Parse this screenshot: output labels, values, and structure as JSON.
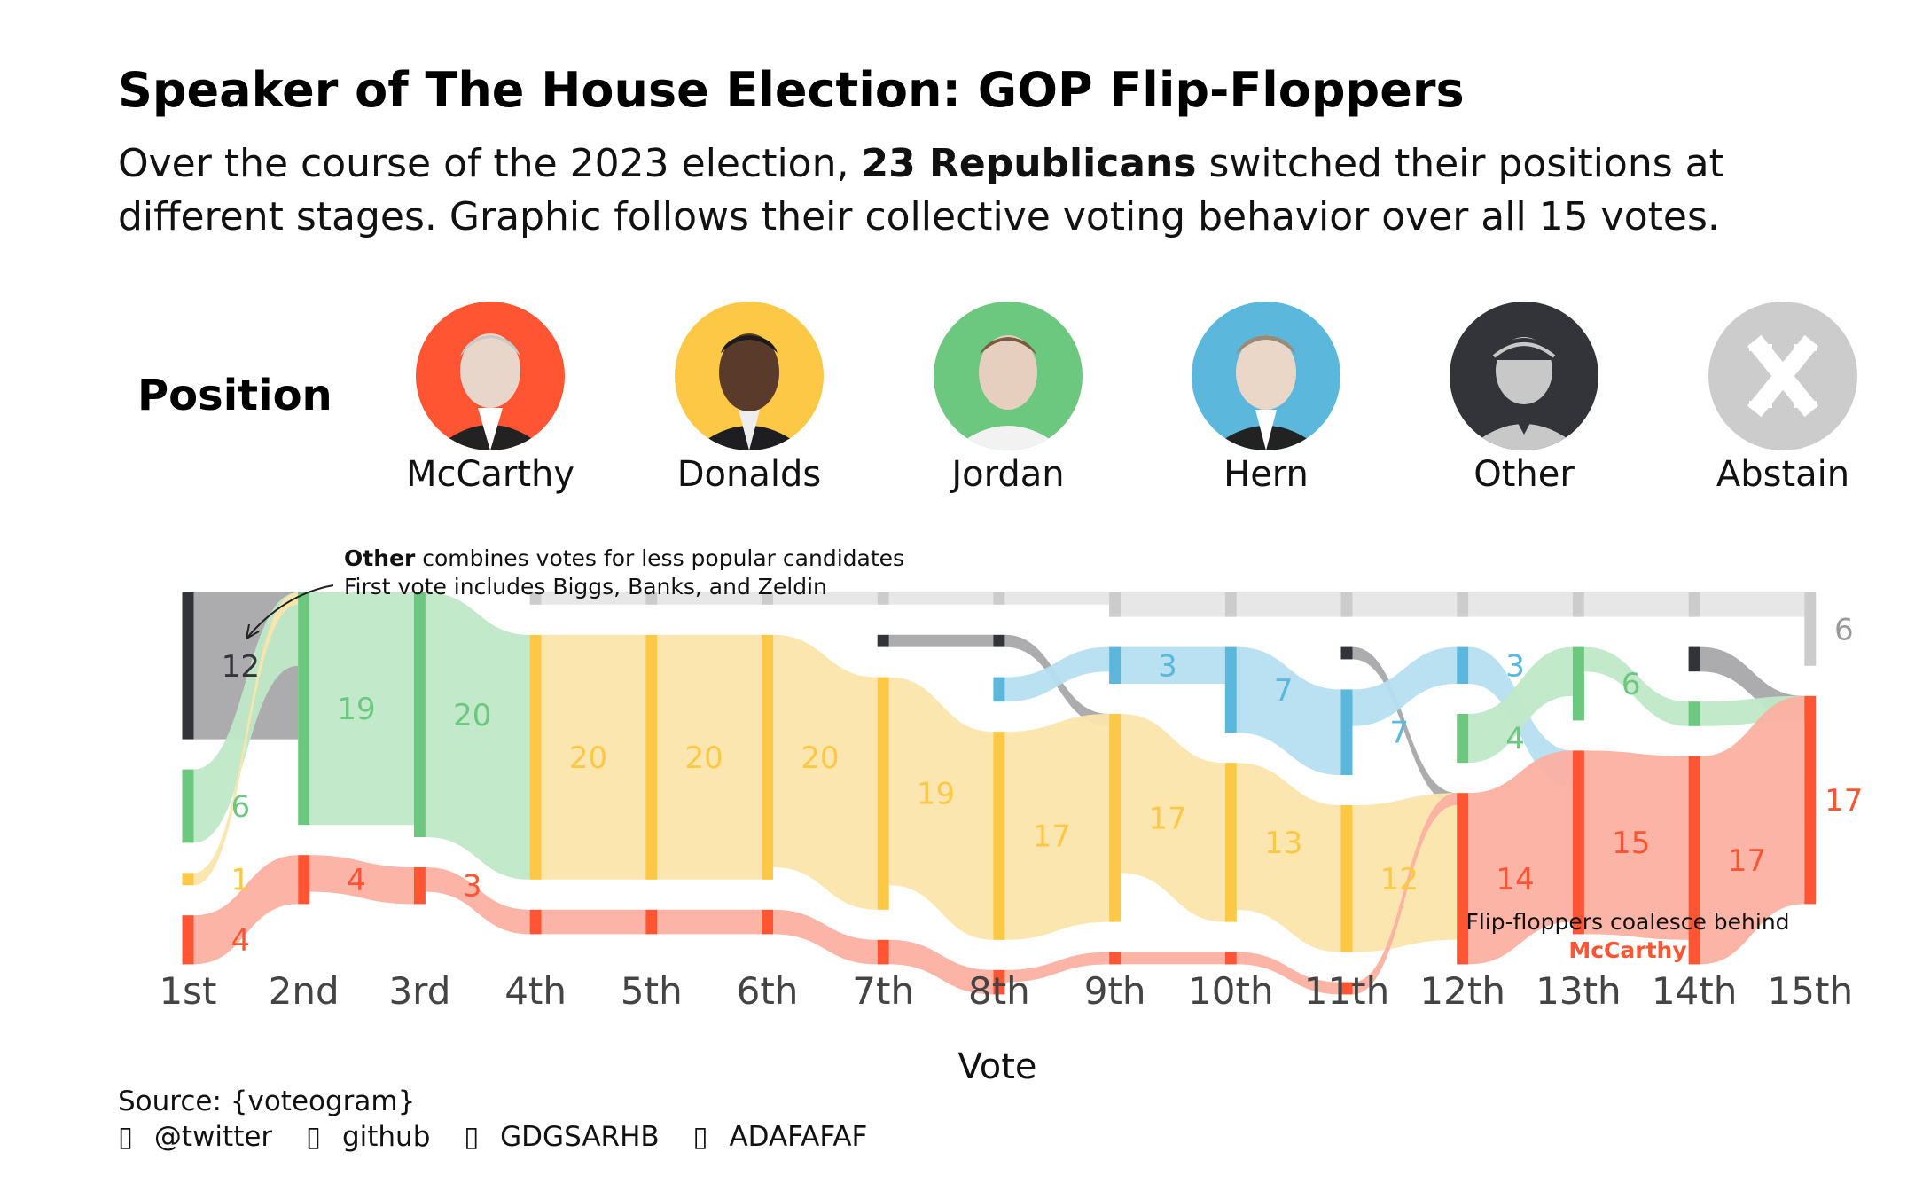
{
  "header": {
    "title": "Speaker of The House Election: GOP Flip-Floppers",
    "subtitle_a": "Over the course of the 2023 election, ",
    "subtitle_bold": "23 Republicans",
    "subtitle_b": " switched their positions at different stages. Graphic follows their collective voting behavior over all 15 votes."
  },
  "legend": {
    "label": "Position",
    "candidates": [
      {
        "name": "McCarthy",
        "color": "#ff5533",
        "icon": "mccarthy-portrait"
      },
      {
        "name": "Donalds",
        "color": "#fcc846",
        "icon": "donalds-portrait"
      },
      {
        "name": "Jordan",
        "color": "#6cc77f",
        "icon": "jordan-portrait"
      },
      {
        "name": "Hern",
        "color": "#5bb8dc",
        "icon": "hern-portrait"
      },
      {
        "name": "Other",
        "color": "#33333a",
        "icon": "person-silhouette-icon"
      },
      {
        "name": "Abstain",
        "color": "#cccccc",
        "icon": "x-mark-icon"
      }
    ]
  },
  "chart_data": {
    "type": "sankey",
    "xlabel": "Vote",
    "votes": [
      "1st",
      "2nd",
      "3rd",
      "4th",
      "5th",
      "6th",
      "7th",
      "8th",
      "9th",
      "10th",
      "11th",
      "12th",
      "13th",
      "14th",
      "15th"
    ],
    "positions": [
      "Abstain",
      "Other",
      "Hern",
      "Jordan",
      "Donalds",
      "McCarthy"
    ],
    "colors": {
      "McCarthy": "#ff5533",
      "Donalds": "#fcc846",
      "Jordan": "#6cc77f",
      "Hern": "#5bb8dc",
      "Other": "#33333a",
      "Abstain": "#cccccc"
    },
    "light_colors": {
      "McCarthy": "#fcb0a1",
      "Donalds": "#fce5ab",
      "Jordan": "#c0e8c8",
      "Hern": "#b5dff0",
      "Other": "#a8a8aa",
      "Abstain": "#e6e6e6"
    },
    "counts": [
      {
        "Abstain": 0,
        "Other": 12,
        "Hern": 0,
        "Jordan": 6,
        "Donalds": 1,
        "McCarthy": 4
      },
      {
        "Abstain": 0,
        "Other": 0,
        "Hern": 0,
        "Jordan": 19,
        "Donalds": 0,
        "McCarthy": 4
      },
      {
        "Abstain": 0,
        "Other": 0,
        "Hern": 0,
        "Jordan": 20,
        "Donalds": 0,
        "McCarthy": 3
      },
      {
        "Abstain": 1,
        "Other": 0,
        "Hern": 0,
        "Jordan": 0,
        "Donalds": 20,
        "McCarthy": 2
      },
      {
        "Abstain": 1,
        "Other": 0,
        "Hern": 0,
        "Jordan": 0,
        "Donalds": 20,
        "McCarthy": 2
      },
      {
        "Abstain": 1,
        "Other": 0,
        "Hern": 0,
        "Jordan": 0,
        "Donalds": 20,
        "McCarthy": 2
      },
      {
        "Abstain": 1,
        "Other": 1,
        "Hern": 0,
        "Jordan": 0,
        "Donalds": 19,
        "McCarthy": 2
      },
      {
        "Abstain": 1,
        "Other": 1,
        "Hern": 2,
        "Jordan": 0,
        "Donalds": 17,
        "McCarthy": 2
      },
      {
        "Abstain": 2,
        "Other": 0,
        "Hern": 3,
        "Jordan": 0,
        "Donalds": 17,
        "McCarthy": 1
      },
      {
        "Abstain": 2,
        "Other": 0,
        "Hern": 7,
        "Jordan": 0,
        "Donalds": 13,
        "McCarthy": 1
      },
      {
        "Abstain": 2,
        "Other": 1,
        "Hern": 7,
        "Jordan": 0,
        "Donalds": 12,
        "McCarthy": 1
      },
      {
        "Abstain": 2,
        "Other": 0,
        "Hern": 3,
        "Jordan": 4,
        "Donalds": 0,
        "McCarthy": 14
      },
      {
        "Abstain": 2,
        "Other": 0,
        "Hern": 0,
        "Jordan": 6,
        "Donalds": 0,
        "McCarthy": 15
      },
      {
        "Abstain": 2,
        "Other": 2,
        "Hern": 0,
        "Jordan": 2,
        "Donalds": 0,
        "McCarthy": 17
      },
      {
        "Abstain": 6,
        "Other": 0,
        "Hern": 0,
        "Jordan": 0,
        "Donalds": 0,
        "McCarthy": 17
      }
    ],
    "value_labels": [
      {
        "vote": 0,
        "position": "Other",
        "text": "12"
      },
      {
        "vote": 0,
        "position": "Jordan",
        "text": "6"
      },
      {
        "vote": 0,
        "position": "Donalds",
        "text": "1"
      },
      {
        "vote": 0,
        "position": "McCarthy",
        "text": "4"
      },
      {
        "vote": 1,
        "position": "Jordan",
        "text": "19"
      },
      {
        "vote": 1,
        "position": "McCarthy",
        "text": "4"
      },
      {
        "vote": 2,
        "position": "Jordan",
        "text": "20"
      },
      {
        "vote": 2,
        "position": "McCarthy",
        "text": "3"
      },
      {
        "vote": 3,
        "position": "Donalds",
        "text": "20"
      },
      {
        "vote": 4,
        "position": "Donalds",
        "text": "20"
      },
      {
        "vote": 5,
        "position": "Donalds",
        "text": "20"
      },
      {
        "vote": 6,
        "position": "Donalds",
        "text": "19"
      },
      {
        "vote": 7,
        "position": "Donalds",
        "text": "17"
      },
      {
        "vote": 8,
        "position": "Hern",
        "text": "3"
      },
      {
        "vote": 8,
        "position": "Donalds",
        "text": "17"
      },
      {
        "vote": 9,
        "position": "Hern",
        "text": "7"
      },
      {
        "vote": 9,
        "position": "Donalds",
        "text": "13"
      },
      {
        "vote": 10,
        "position": "Hern",
        "text": "7"
      },
      {
        "vote": 10,
        "position": "Donalds",
        "text": "12"
      },
      {
        "vote": 11,
        "position": "Hern",
        "text": "3"
      },
      {
        "vote": 11,
        "position": "Jordan",
        "text": "4"
      },
      {
        "vote": 11,
        "position": "McCarthy",
        "text": "14"
      },
      {
        "vote": 12,
        "position": "Jordan",
        "text": "6"
      },
      {
        "vote": 12,
        "position": "McCarthy",
        "text": "15"
      },
      {
        "vote": 13,
        "position": "McCarthy",
        "text": "17"
      },
      {
        "vote": 14,
        "position": "Abstain",
        "text": "6"
      },
      {
        "vote": 14,
        "position": "McCarthy",
        "text": "17"
      }
    ],
    "annotations": {
      "other_bold": "Other",
      "other_rest": " combines votes for less popular candidates",
      "first_vote": "First vote includes Biggs, Banks, and Zeldin",
      "coalesce": "Flip-floppers coalesce behind",
      "coalesce_name": "McCarthy"
    }
  },
  "footer": {
    "source": "Source: {voteogram}",
    "social": [
      {
        "icon": "twitter-icon",
        "glyph": "▯",
        "text": "@twitter"
      },
      {
        "icon": "github-icon",
        "glyph": "▯",
        "text": "github"
      },
      {
        "icon": "linkedin-icon",
        "glyph": "▯",
        "text": "GDGSARHB"
      },
      {
        "icon": "mastodon-icon",
        "glyph": "▯",
        "text": "ADAFAFAF"
      }
    ]
  }
}
